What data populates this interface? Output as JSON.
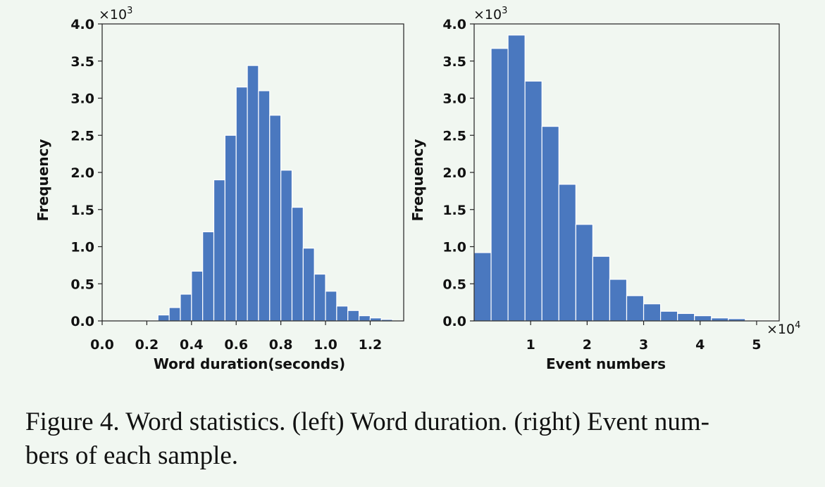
{
  "caption": "Figure 4. Word statistics. (left) Word duration. (right) Event num-bers of each sample.",
  "caption_lines": [
    "Figure 4. Word statistics. (left) Word duration. (right) Event num-",
    "bers of each sample."
  ],
  "colors": {
    "bar": "#4a78bf",
    "background": "#f1f7f1"
  },
  "chart_data": [
    {
      "type": "bar",
      "panel": "left",
      "xlabel": "Word duration(seconds)",
      "ylabel": "Frequency",
      "y_multiplier_base": "×10",
      "y_multiplier_exp": "3",
      "xlim": [
        0.0,
        1.35
      ],
      "ylim": [
        0.0,
        4.0
      ],
      "x_ticks": [
        0.0,
        0.2,
        0.4,
        0.6,
        0.8,
        1.0,
        1.2
      ],
      "x_tick_labels": [
        "0.0",
        "0.2",
        "0.4",
        "0.6",
        "0.8",
        "1.0",
        "1.2"
      ],
      "y_ticks": [
        0.0,
        0.5,
        1.0,
        1.5,
        2.0,
        2.5,
        3.0,
        3.5,
        4.0
      ],
      "y_tick_labels": [
        "0.0",
        "0.5",
        "1.0",
        "1.5",
        "2.0",
        "2.5",
        "3.0",
        "3.5",
        "4.0"
      ],
      "bin_start": 0.0,
      "bin_width": 0.05,
      "values": [
        0.0,
        0.0,
        0.0,
        0.0,
        0.01,
        0.08,
        0.18,
        0.36,
        0.67,
        1.2,
        1.9,
        2.5,
        3.15,
        3.44,
        3.1,
        2.77,
        2.03,
        1.53,
        0.98,
        0.63,
        0.4,
        0.2,
        0.14,
        0.07,
        0.04,
        0.02
      ],
      "grid": false
    },
    {
      "type": "bar",
      "panel": "right",
      "xlabel": "Event numbers",
      "ylabel": "Frequency",
      "y_multiplier_base": "×10",
      "y_multiplier_exp": "3",
      "x_multiplier_base": "×10",
      "x_multiplier_exp": "4",
      "xlim": [
        0.0,
        5.4
      ],
      "ylim": [
        0.0,
        4.0
      ],
      "x_ticks": [
        1,
        2,
        3,
        4,
        5
      ],
      "x_tick_labels": [
        "1",
        "2",
        "3",
        "4",
        "5"
      ],
      "y_ticks": [
        0.0,
        0.5,
        1.0,
        1.5,
        2.0,
        2.5,
        3.0,
        3.5,
        4.0
      ],
      "y_tick_labels": [
        "0.0",
        "0.5",
        "1.0",
        "1.5",
        "2.0",
        "2.5",
        "3.0",
        "3.5",
        "4.0"
      ],
      "bin_start": 0.0,
      "bin_width": 0.3,
      "values": [
        0.92,
        3.67,
        3.85,
        3.23,
        2.62,
        1.84,
        1.3,
        0.87,
        0.56,
        0.34,
        0.23,
        0.13,
        0.1,
        0.07,
        0.04,
        0.03,
        0.01,
        0.01
      ],
      "grid": false
    }
  ]
}
